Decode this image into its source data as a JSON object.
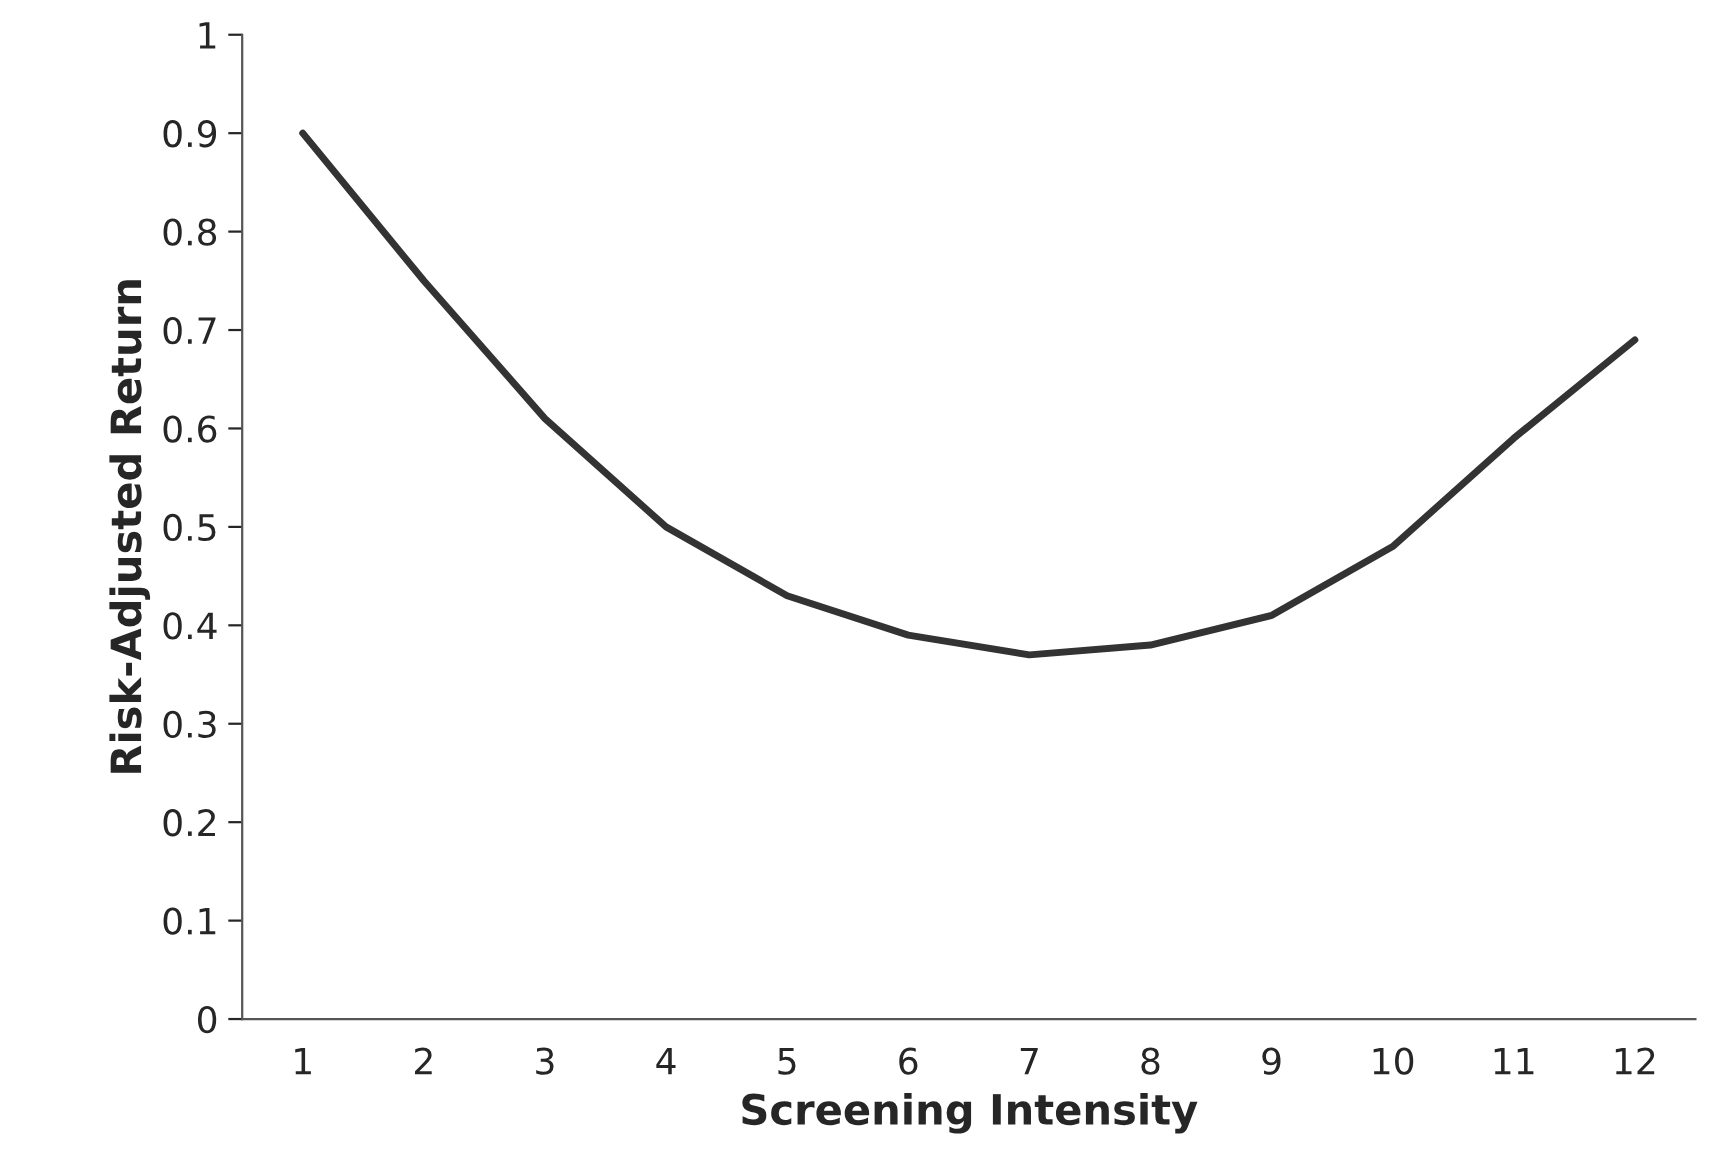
{
  "chart_data": {
    "type": "line",
    "xlabel": "Screening Intensity",
    "ylabel": "Risk-Adjusted Return",
    "categories": [
      "1",
      "2",
      "3",
      "4",
      "5",
      "6",
      "7",
      "8",
      "9",
      "10",
      "11",
      "12"
    ],
    "series": [
      {
        "color": "#333333",
        "values": [
          0.9,
          0.75,
          0.61,
          0.5,
          0.43,
          0.39,
          0.37,
          0.38,
          0.41,
          0.48,
          0.59,
          0.69
        ]
      }
    ],
    "ylim": [
      0,
      1
    ],
    "yticks": [
      0,
      0.1,
      0.2,
      0.3,
      0.4,
      0.5,
      0.6,
      0.7,
      0.8,
      0.9,
      1
    ],
    "grid": false,
    "legend": false,
    "marker": "none",
    "line_style": "solid"
  }
}
